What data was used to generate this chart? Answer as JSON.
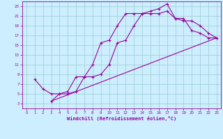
{
  "xlabel": "Windchill (Refroidissement éolien,°C)",
  "bg_color": "#cceeff",
  "line_color": "#990099",
  "grid_color": "#99cccc",
  "line1_x": [
    1,
    2,
    3,
    4,
    5,
    6,
    7,
    8,
    9,
    10,
    11,
    12,
    13,
    14,
    15,
    16,
    17,
    18,
    19,
    20,
    21,
    22,
    23
  ],
  "line1_y": [
    8,
    6,
    5,
    5,
    5.5,
    8.5,
    8.5,
    11,
    15.5,
    16,
    19,
    21.5,
    21.5,
    21.5,
    22,
    22.5,
    23.5,
    20.5,
    20.5,
    18,
    17.5,
    16.5,
    16.5
  ],
  "line2_x": [
    3,
    4,
    5,
    6,
    7,
    8,
    9,
    10,
    11,
    12,
    13,
    14,
    15,
    16,
    17,
    18,
    19,
    20,
    21,
    22,
    23
  ],
  "line2_y": [
    3.5,
    5,
    5,
    5.5,
    8.5,
    8.5,
    9,
    11,
    15.5,
    16,
    19,
    21.5,
    21.5,
    21.5,
    22,
    20.5,
    20,
    20,
    19,
    17.5,
    16.5
  ],
  "line3_x": [
    3,
    23
  ],
  "line3_y": [
    3.5,
    16.5
  ],
  "xlim": [
    -0.5,
    23.5
  ],
  "ylim": [
    2,
    24
  ],
  "xticks": [
    0,
    1,
    2,
    3,
    4,
    5,
    6,
    7,
    8,
    9,
    10,
    11,
    12,
    13,
    14,
    15,
    16,
    17,
    18,
    19,
    20,
    21,
    22,
    23
  ],
  "yticks": [
    3,
    5,
    7,
    9,
    11,
    13,
    15,
    17,
    19,
    21,
    23
  ]
}
